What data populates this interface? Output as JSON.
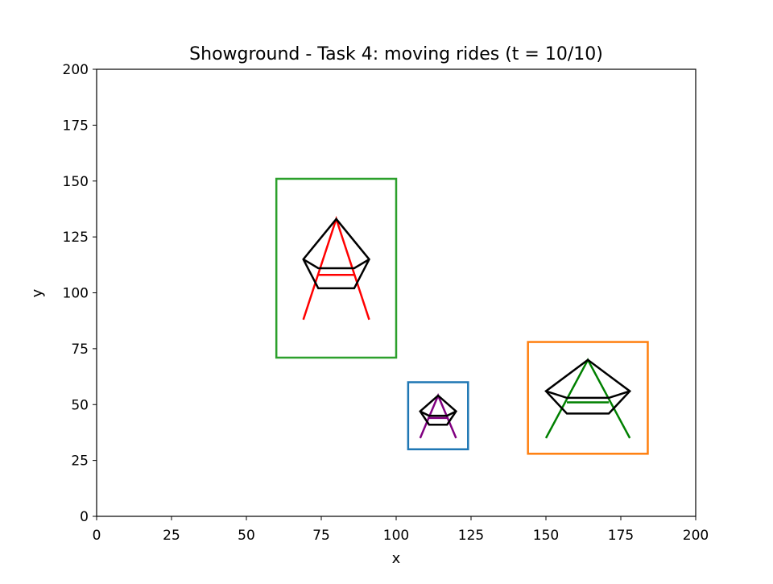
{
  "chart_data": {
    "type": "scatter",
    "title": "Showground - Task 4: moving rides (t = 10/10)",
    "xlabel": "x",
    "ylabel": "y",
    "xlim": [
      0,
      200
    ],
    "ylim": [
      0,
      200
    ],
    "xticks": [
      "0",
      "25",
      "50",
      "75",
      "100",
      "125",
      "150",
      "175",
      "200"
    ],
    "yticks": [
      "0",
      "25",
      "50",
      "75",
      "100",
      "125",
      "150",
      "175",
      "200"
    ],
    "grid": false,
    "legend": "none",
    "rectangles": [
      {
        "x0": 60,
        "y0": 71,
        "x1": 100,
        "y1": 151,
        "color": "#2ca02c"
      },
      {
        "x0": 104,
        "y0": 30,
        "x1": 124,
        "y1": 60,
        "color": "#1f77b4"
      },
      {
        "x0": 144,
        "y0": 28,
        "x1": 184,
        "y1": 78,
        "color": "#ff7f0e"
      }
    ],
    "rides": [
      {
        "color": "#ff0000",
        "legs": [
          [
            69,
            88
          ],
          [
            80,
            133
          ],
          [
            91,
            88
          ]
        ],
        "crossbar": [
          [
            74,
            108
          ],
          [
            86,
            108
          ]
        ],
        "pentagon": [
          [
            80,
            133
          ],
          [
            69,
            115
          ],
          [
            74,
            102
          ],
          [
            86,
            102
          ],
          [
            91,
            115
          ]
        ],
        "seat": [
          [
            69,
            115
          ],
          [
            74,
            111
          ],
          [
            86,
            111
          ],
          [
            91,
            115
          ]
        ]
      },
      {
        "color": "#800080",
        "legs": [
          [
            108,
            35
          ],
          [
            114,
            54
          ],
          [
            120,
            35
          ]
        ],
        "crossbar": [
          [
            111,
            44
          ],
          [
            117,
            44
          ]
        ],
        "pentagon": [
          [
            114,
            54
          ],
          [
            108,
            47
          ],
          [
            111,
            41
          ],
          [
            117,
            41
          ],
          [
            120,
            47
          ]
        ],
        "seat": [
          [
            108,
            47
          ],
          [
            111,
            45
          ],
          [
            117,
            45
          ],
          [
            120,
            47
          ]
        ]
      },
      {
        "color": "#008000",
        "legs": [
          [
            150,
            35
          ],
          [
            164,
            70
          ],
          [
            178,
            35
          ]
        ],
        "crossbar": [
          [
            157,
            51
          ],
          [
            171,
            51
          ]
        ],
        "pentagon": [
          [
            164,
            70
          ],
          [
            150,
            56
          ],
          [
            157,
            46
          ],
          [
            171,
            46
          ],
          [
            178,
            56
          ]
        ],
        "seat": [
          [
            150,
            56
          ],
          [
            157,
            53
          ],
          [
            171,
            53
          ],
          [
            178,
            56
          ]
        ]
      }
    ]
  }
}
